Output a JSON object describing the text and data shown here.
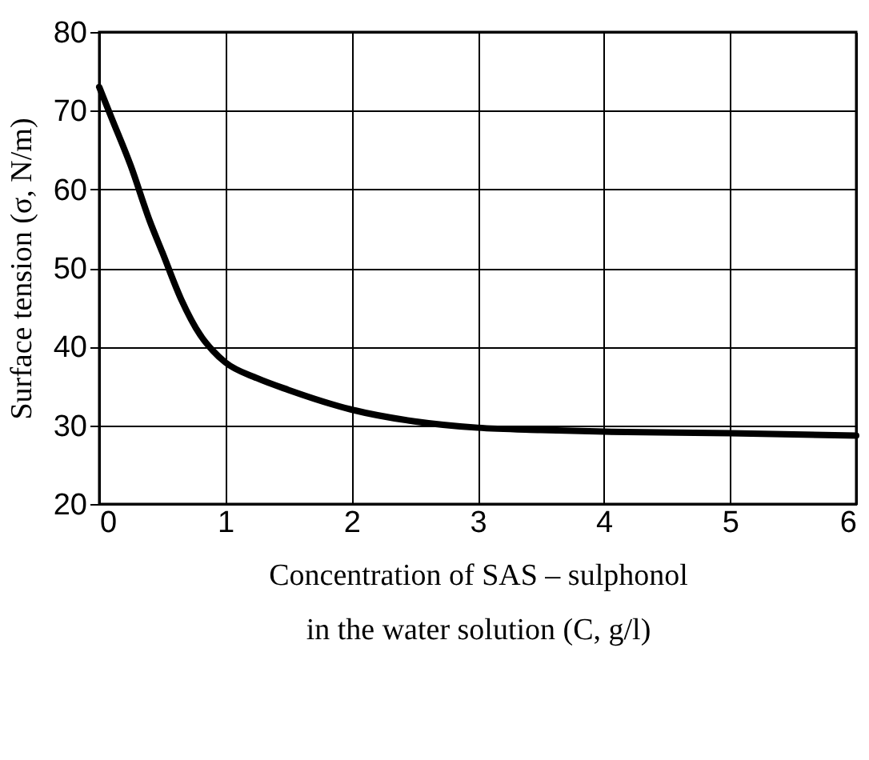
{
  "chart_data": {
    "type": "line",
    "xlabel": "Concentration of SAS – sulphonol\nin the water solution (C, g/l)",
    "ylabel": "Surface tension (σ, N/m)",
    "x": [
      0,
      0.1,
      0.25,
      0.4,
      0.5,
      0.65,
      0.8,
      0.9,
      1,
      1.25,
      1.5,
      2,
      2.5,
      3,
      3.5,
      4,
      5,
      6
    ],
    "series": [
      {
        "color": "#000000",
        "values": [
          73,
          69,
          63,
          56,
          52,
          46,
          41.5,
          39.5,
          38,
          36,
          34.5,
          32,
          30.5,
          29.7,
          29.4,
          29.2,
          29,
          28.7
        ]
      }
    ],
    "xlim": [
      0,
      6
    ],
    "xticks": [
      0,
      1,
      2,
      3,
      4,
      5,
      6
    ],
    "ylim": [
      20,
      80
    ],
    "yticks": [
      20,
      30,
      40,
      50,
      60,
      70,
      80
    ],
    "grid": true,
    "line_style": "solid",
    "marker": "none"
  }
}
